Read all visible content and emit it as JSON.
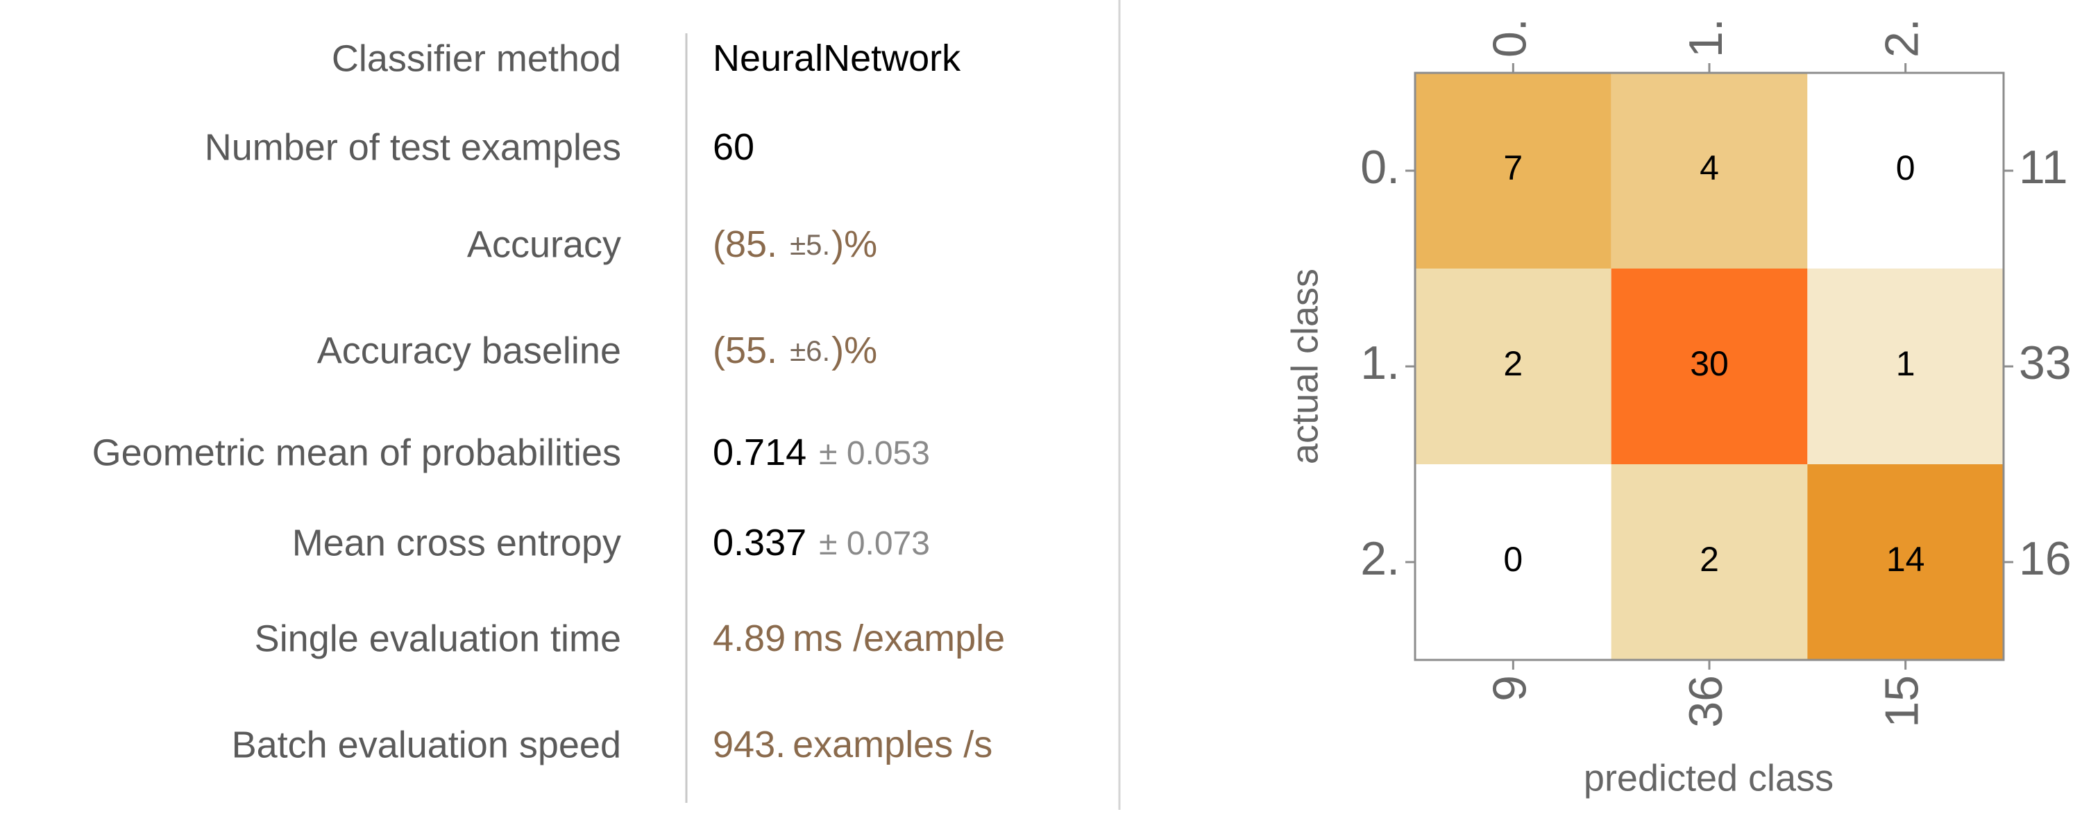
{
  "table": {
    "rows": [
      {
        "label": "Classifier method",
        "value": "NeuralNetwork"
      },
      {
        "label": "Number of test examples",
        "value": "60"
      },
      {
        "label": "Accuracy",
        "value": "(85.",
        "error": "±5.",
        "suffix": ")%"
      },
      {
        "label": "Accuracy baseline",
        "value": "(55.",
        "error": "±6.",
        "suffix": ")%"
      },
      {
        "label": "Geometric mean of probabilities",
        "value": "0.714",
        "error": "± 0.053"
      },
      {
        "label": "Mean cross entropy",
        "value": "0.337",
        "error": "± 0.073"
      },
      {
        "label": "Single evaluation time",
        "value": "4.89",
        "suffix": "ms /example"
      },
      {
        "label": "Batch evaluation speed",
        "value": "943.",
        "suffix": "examples /s"
      }
    ]
  },
  "matrix": {
    "column_labels": [
      "0.",
      "1.",
      "2."
    ],
    "row_labels": [
      "0.",
      "1.",
      "2."
    ],
    "cells": [
      [
        7,
        4,
        0
      ],
      [
        2,
        30,
        1
      ],
      [
        0,
        2,
        14
      ]
    ],
    "row_totals": [
      11,
      33,
      16
    ],
    "column_totals": [
      9,
      36,
      15
    ],
    "x_label": "predicted class",
    "y_label": "actual class"
  }
}
